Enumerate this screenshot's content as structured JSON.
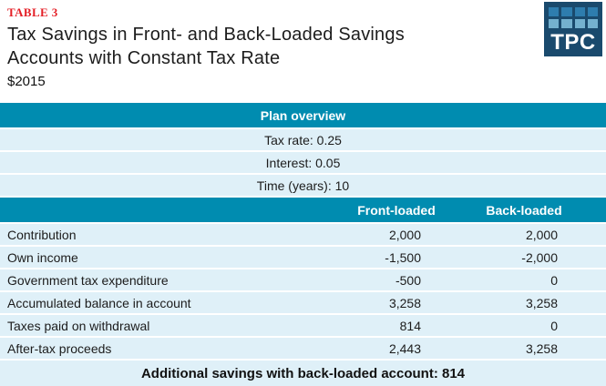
{
  "colors": {
    "teal_band": "#008cb0",
    "row_bg": "#dff0f8",
    "table_label_red": "#e41e25",
    "logo_navy": "#1a4a6d",
    "logo_square_dark": "#2e7dae",
    "logo_square_light": "#74b1cf"
  },
  "header": {
    "table_label": "TABLE 3",
    "title_line1": "Tax Savings in Front- and Back-Loaded Savings",
    "title_line2": "Accounts with Constant Tax Rate",
    "subtitle": "$2015",
    "logo_text": "TPC"
  },
  "plan": {
    "header": "Plan overview",
    "rows": [
      "Tax rate: 0.25",
      "Interest: 0.05",
      "Time (years): 10"
    ]
  },
  "columns": {
    "front": "Front-loaded",
    "back": "Back-loaded"
  },
  "rows": [
    {
      "label": "Contribution",
      "front": "2,000",
      "back": "2,000"
    },
    {
      "label": "Own income",
      "front": "-1,500",
      "back": "-2,000"
    },
    {
      "label": "Government tax expenditure",
      "front": "-500",
      "back": "0"
    },
    {
      "label": "Accumulated balance in account",
      "front": "3,258",
      "back": "3,258"
    },
    {
      "label": "Taxes paid on withdrawal",
      "front": "814",
      "back": "0"
    },
    {
      "label": "After-tax proceeds",
      "front": "2,443",
      "back": "3,258"
    }
  ],
  "footer": "Additional savings with back-loaded account: 814",
  "chart_data": {
    "type": "table",
    "table_label": "TABLE 3",
    "title": "Tax Savings in Front- and Back-Loaded Savings Accounts with Constant Tax Rate",
    "subtitle": "$2015",
    "plan_overview": {
      "tax_rate": 0.25,
      "interest": 0.05,
      "time_years": 10
    },
    "columns": [
      "",
      "Front-loaded",
      "Back-loaded"
    ],
    "rows": [
      [
        "Contribution",
        2000,
        2000
      ],
      [
        "Own income",
        -1500,
        -2000
      ],
      [
        "Government tax expenditure",
        -500,
        0
      ],
      [
        "Accumulated balance in account",
        3258,
        3258
      ],
      [
        "Taxes paid on withdrawal",
        814,
        0
      ],
      [
        "After-tax proceeds",
        2443,
        3258
      ]
    ],
    "footer_note": "Additional savings with back-loaded account: 814",
    "additional_savings_back_loaded": 814
  }
}
